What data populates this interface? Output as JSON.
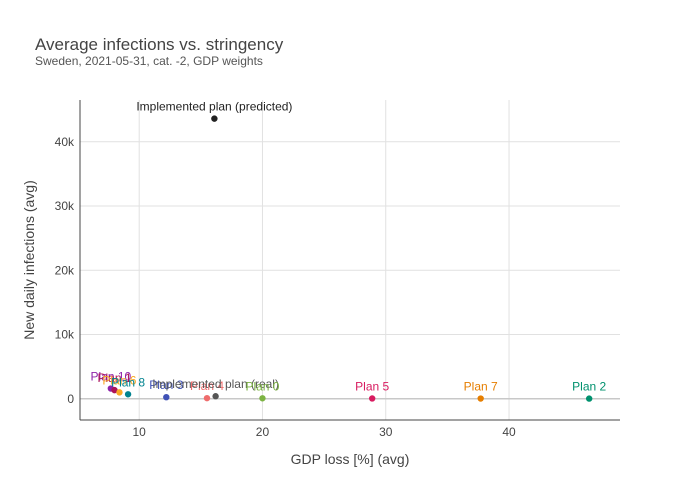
{
  "title": "Average infections vs. stringency",
  "subtitle": "Sweden, 2021-05-31, cat. -2, GDP weights",
  "chart_data": {
    "type": "scatter",
    "title": "Average infections vs. stringency",
    "subtitle": "Sweden, 2021-05-31, cat. -2, GDP weights",
    "xlabel": "GDP loss [%] (avg)",
    "ylabel": "New daily infections (avg)",
    "xlim": [
      5.2,
      49.0
    ],
    "ylim": [
      -3300,
      46500
    ],
    "x_ticks": [
      10,
      20,
      30,
      40
    ],
    "x_tick_labels": [
      "10",
      "20",
      "30",
      "40"
    ],
    "y_ticks": [
      0,
      10000,
      20000,
      30000,
      40000
    ],
    "y_tick_labels": [
      "0",
      "10k",
      "20k",
      "30k",
      "40k"
    ],
    "grid": true,
    "points": [
      {
        "label": "Implemented plan (predicted)",
        "x": 16.1,
        "y": 43600,
        "color": "#222222"
      },
      {
        "label": "Plan 10",
        "x": 7.7,
        "y": 1600,
        "color": "#8e24aa"
      },
      {
        "label": "Plan 1",
        "x": 8.0,
        "y": 1350,
        "color": "#ad1457"
      },
      {
        "label": "Plan 6",
        "x": 8.4,
        "y": 1000,
        "color": "#f9a825"
      },
      {
        "label": "Plan 8",
        "x": 9.1,
        "y": 700,
        "color": "#00838f"
      },
      {
        "label": "Plan 3",
        "x": 12.2,
        "y": 250,
        "color": "#3f51b5"
      },
      {
        "label": "Plan 4",
        "x": 15.5,
        "y": 100,
        "color": "#ef6c6c"
      },
      {
        "label": "Implemented plan (real)",
        "x": 16.2,
        "y": 400,
        "color": "#555555"
      },
      {
        "label": "Plan 0",
        "x": 20.0,
        "y": 80,
        "color": "#7cb342"
      },
      {
        "label": "Plan 5",
        "x": 28.9,
        "y": 50,
        "color": "#d81b60"
      },
      {
        "label": "Plan 7",
        "x": 37.7,
        "y": 40,
        "color": "#e67e00"
      },
      {
        "label": "Plan 2",
        "x": 46.5,
        "y": 30,
        "color": "#00916e"
      }
    ]
  }
}
